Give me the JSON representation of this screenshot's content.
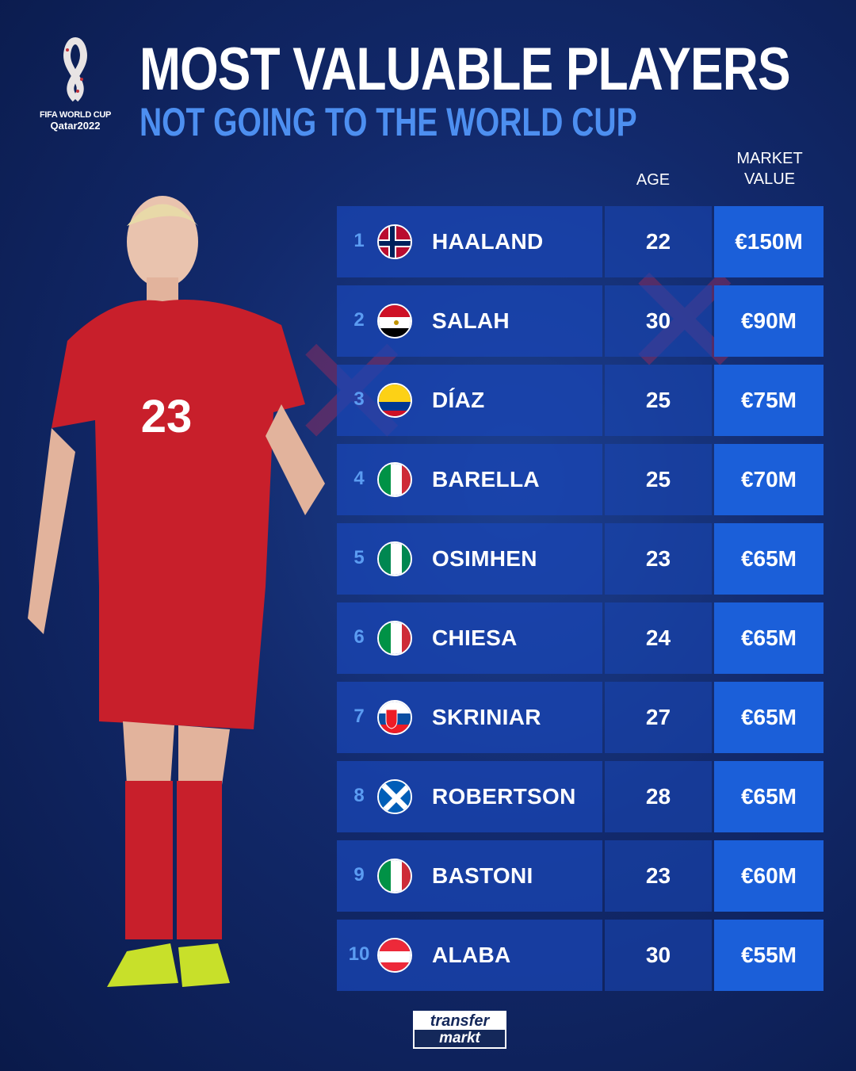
{
  "logo": {
    "line1": "FIFA WORLD CUP",
    "line2": "Qatar2022"
  },
  "title": "MOST VALUABLE PLAYERS",
  "subtitle": "NOT GOING TO THE WORLD CUP",
  "headers": {
    "age": "AGE",
    "market_value_1": "MARKET",
    "market_value_2": "VALUE"
  },
  "colors": {
    "accent": "#4d8ff0",
    "value_cell": "#1b5fd9"
  },
  "players": [
    {
      "rank": "1",
      "flag": "norway",
      "name": "HAALAND",
      "age": "22",
      "value": "€150M"
    },
    {
      "rank": "2",
      "flag": "egypt",
      "name": "SALAH",
      "age": "30",
      "value": "€90M"
    },
    {
      "rank": "3",
      "flag": "colombia",
      "name": "DÍAZ",
      "age": "25",
      "value": "€75M"
    },
    {
      "rank": "4",
      "flag": "italy",
      "name": "BARELLA",
      "age": "25",
      "value": "€70M"
    },
    {
      "rank": "5",
      "flag": "nigeria",
      "name": "OSIMHEN",
      "age": "23",
      "value": "€65M"
    },
    {
      "rank": "6",
      "flag": "italy",
      "name": "CHIESA",
      "age": "24",
      "value": "€65M"
    },
    {
      "rank": "7",
      "flag": "slovakia",
      "name": "SKRINIAR",
      "age": "27",
      "value": "€65M"
    },
    {
      "rank": "8",
      "flag": "scotland",
      "name": "ROBERTSON",
      "age": "28",
      "value": "€65M"
    },
    {
      "rank": "9",
      "flag": "italy",
      "name": "BASTONI",
      "age": "23",
      "value": "€60M"
    },
    {
      "rank": "10",
      "flag": "austria",
      "name": "ALABA",
      "age": "30",
      "value": "€55M"
    }
  ],
  "player_shirt_number": "23",
  "footer": {
    "brand_1": "transfer",
    "brand_2": "markt"
  }
}
